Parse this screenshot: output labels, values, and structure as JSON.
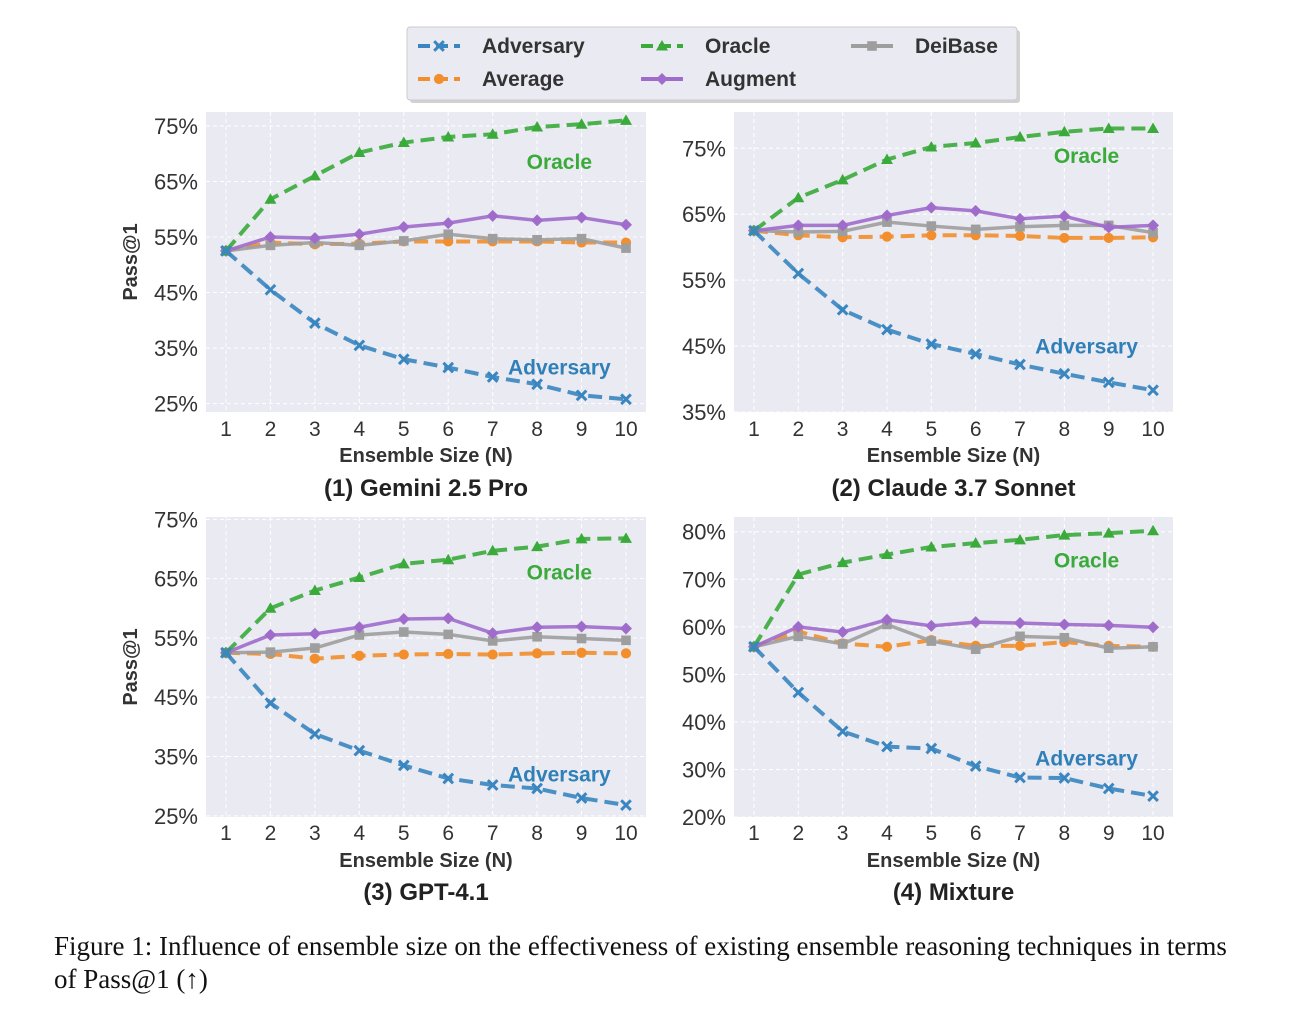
{
  "legend": [
    {
      "name": "Adversary",
      "color": "#3a86c0",
      "marker": "x",
      "dash": true
    },
    {
      "name": "Average",
      "color": "#f28e2b",
      "marker": "circle",
      "dash": true
    },
    {
      "name": "Oracle",
      "color": "#3aab3a",
      "marker": "triangle",
      "dash": true
    },
    {
      "name": "Augment",
      "color": "#a06ccb",
      "marker": "diamond",
      "dash": false
    },
    {
      "name": "DeiBase",
      "color": "#9e9e9e",
      "marker": "square",
      "dash": false
    }
  ],
  "colors": {
    "panel_bg": "#eaeaf2",
    "grid": "#ffffff",
    "oracle_label": "#3aab3a",
    "adversary_label": "#2f7fb8"
  },
  "caption": {
    "prefix": "Figure 1: ",
    "text": "Influence of ensemble size on the effectiveness of existing ensemble reasoning techniques in terms of Pass@1 (↑)"
  },
  "chart_data": [
    {
      "type": "line",
      "title": "(1) Gemini 2.5 Pro",
      "xlabel": "Ensemble Size (N)",
      "ylabel": "Pass@1",
      "x": [
        1,
        2,
        3,
        4,
        5,
        6,
        7,
        8,
        9,
        10
      ],
      "yticks": [
        "25%",
        "35%",
        "45%",
        "55%",
        "65%",
        "75%"
      ],
      "ytick_values": [
        25,
        35,
        45,
        55,
        65,
        75
      ],
      "ylim": [
        23.5,
        77.5
      ],
      "annotations": [
        {
          "text": "Oracle",
          "series": "Oracle",
          "x": 8.5,
          "y": 68.5
        },
        {
          "text": "Adversary",
          "series": "Adversary",
          "x": 8.5,
          "y": 31.5
        }
      ],
      "series": [
        {
          "name": "Adversary",
          "values": [
            52.5,
            45.5,
            39.5,
            35.5,
            33.0,
            31.5,
            29.8,
            28.5,
            26.5,
            25.8
          ]
        },
        {
          "name": "Average",
          "values": [
            52.5,
            54.0,
            53.7,
            53.8,
            54.2,
            54.2,
            54.2,
            54.2,
            54.0,
            54.0
          ]
        },
        {
          "name": "Oracle",
          "values": [
            52.5,
            61.8,
            66.0,
            70.2,
            72.0,
            73.0,
            73.5,
            74.8,
            75.3,
            76.0
          ]
        },
        {
          "name": "Augment",
          "values": [
            52.5,
            55.0,
            54.8,
            55.5,
            56.8,
            57.5,
            58.8,
            58.0,
            58.5,
            57.2
          ]
        },
        {
          "name": "DeiBase",
          "values": [
            52.5,
            53.5,
            54.0,
            53.5,
            54.3,
            55.5,
            54.7,
            54.5,
            54.7,
            53.0
          ]
        }
      ]
    },
    {
      "type": "line",
      "title": "(2) Claude 3.7 Sonnet",
      "xlabel": "Ensemble Size (N)",
      "ylabel": "",
      "x": [
        1,
        2,
        3,
        4,
        5,
        6,
        7,
        8,
        9,
        10
      ],
      "yticks": [
        "35%",
        "45%",
        "55%",
        "65%",
        "75%"
      ],
      "ytick_values": [
        35,
        45,
        55,
        65,
        75
      ],
      "ylim": [
        35,
        80.5
      ],
      "annotations": [
        {
          "text": "Oracle",
          "series": "Oracle",
          "x": 8.5,
          "y": 73.8
        },
        {
          "text": "Adversary",
          "series": "Adversary",
          "x": 8.5,
          "y": 44.9
        }
      ],
      "series": [
        {
          "name": "Adversary",
          "values": [
            62.5,
            56.0,
            50.5,
            47.5,
            45.3,
            43.8,
            42.2,
            40.8,
            39.5,
            38.3
          ]
        },
        {
          "name": "Average",
          "values": [
            62.5,
            61.8,
            61.5,
            61.6,
            61.8,
            61.8,
            61.7,
            61.4,
            61.4,
            61.5
          ]
        },
        {
          "name": "Oracle",
          "values": [
            62.5,
            67.5,
            70.2,
            73.3,
            75.2,
            75.8,
            76.7,
            77.5,
            78.0,
            78.0
          ]
        },
        {
          "name": "Augment",
          "values": [
            62.5,
            63.3,
            63.3,
            64.8,
            66.0,
            65.5,
            64.3,
            64.7,
            63.0,
            63.3
          ]
        },
        {
          "name": "DeiBase",
          "values": [
            62.5,
            62.3,
            62.4,
            63.8,
            63.2,
            62.7,
            63.1,
            63.3,
            63.3,
            62.2
          ]
        }
      ]
    },
    {
      "type": "line",
      "title": "(3) GPT-4.1",
      "xlabel": "Ensemble Size (N)",
      "ylabel": "Pass@1",
      "x": [
        1,
        2,
        3,
        4,
        5,
        6,
        7,
        8,
        9,
        10
      ],
      "yticks": [
        "25%",
        "35%",
        "45%",
        "55%",
        "65%",
        "75%"
      ],
      "ytick_values": [
        25,
        35,
        45,
        55,
        65,
        75
      ],
      "ylim": [
        24.8,
        75.4
      ],
      "annotations": [
        {
          "text": "Oracle",
          "series": "Oracle",
          "x": 8.5,
          "y": 66.0
        },
        {
          "text": "Adversary",
          "series": "Adversary",
          "x": 8.5,
          "y": 32.0
        }
      ],
      "series": [
        {
          "name": "Adversary",
          "values": [
            52.5,
            44.0,
            38.8,
            36.0,
            33.5,
            31.3,
            30.2,
            29.6,
            28.0,
            26.8
          ]
        },
        {
          "name": "Average",
          "values": [
            52.5,
            52.3,
            51.5,
            52.0,
            52.2,
            52.3,
            52.2,
            52.4,
            52.5,
            52.4
          ]
        },
        {
          "name": "Oracle",
          "values": [
            52.5,
            60.0,
            63.0,
            65.2,
            67.5,
            68.2,
            69.7,
            70.4,
            71.7,
            71.8
          ]
        },
        {
          "name": "Augment",
          "values": [
            52.5,
            55.5,
            55.7,
            56.8,
            58.2,
            58.3,
            55.8,
            56.8,
            56.9,
            56.6
          ]
        },
        {
          "name": "DeiBase",
          "values": [
            52.5,
            52.6,
            53.3,
            55.5,
            56.0,
            55.6,
            54.5,
            55.2,
            54.9,
            54.6
          ]
        }
      ]
    },
    {
      "type": "line",
      "title": "(4) Mixture",
      "xlabel": "Ensemble Size (N)",
      "ylabel": "",
      "x": [
        1,
        2,
        3,
        4,
        5,
        6,
        7,
        8,
        9,
        10
      ],
      "yticks": [
        "20%",
        "30%",
        "40%",
        "50%",
        "60%",
        "70%",
        "80%"
      ],
      "ytick_values": [
        20,
        30,
        40,
        50,
        60,
        70,
        80
      ],
      "ylim": [
        20,
        83.1
      ],
      "annotations": [
        {
          "text": "Oracle",
          "series": "Oracle",
          "x": 8.5,
          "y": 74.0
        },
        {
          "text": "Adversary",
          "series": "Adversary",
          "x": 8.5,
          "y": 32.3
        }
      ],
      "series": [
        {
          "name": "Adversary",
          "values": [
            55.8,
            46.2,
            38.0,
            34.8,
            34.4,
            30.7,
            28.3,
            28.2,
            26.0,
            24.4
          ]
        },
        {
          "name": "Average",
          "values": [
            55.8,
            59.0,
            56.5,
            55.8,
            57.2,
            56.0,
            56.0,
            56.8,
            56.0,
            55.8
          ]
        },
        {
          "name": "Oracle",
          "values": [
            55.8,
            71.0,
            73.5,
            75.2,
            76.8,
            77.6,
            78.3,
            79.3,
            79.7,
            80.2
          ]
        },
        {
          "name": "Augment",
          "values": [
            55.8,
            60.0,
            58.9,
            61.5,
            60.2,
            61.0,
            60.8,
            60.5,
            60.3,
            59.9
          ]
        },
        {
          "name": "DeiBase",
          "values": [
            55.8,
            58.0,
            56.4,
            60.5,
            57.0,
            55.3,
            58.0,
            57.7,
            55.5,
            55.8
          ]
        }
      ]
    }
  ]
}
